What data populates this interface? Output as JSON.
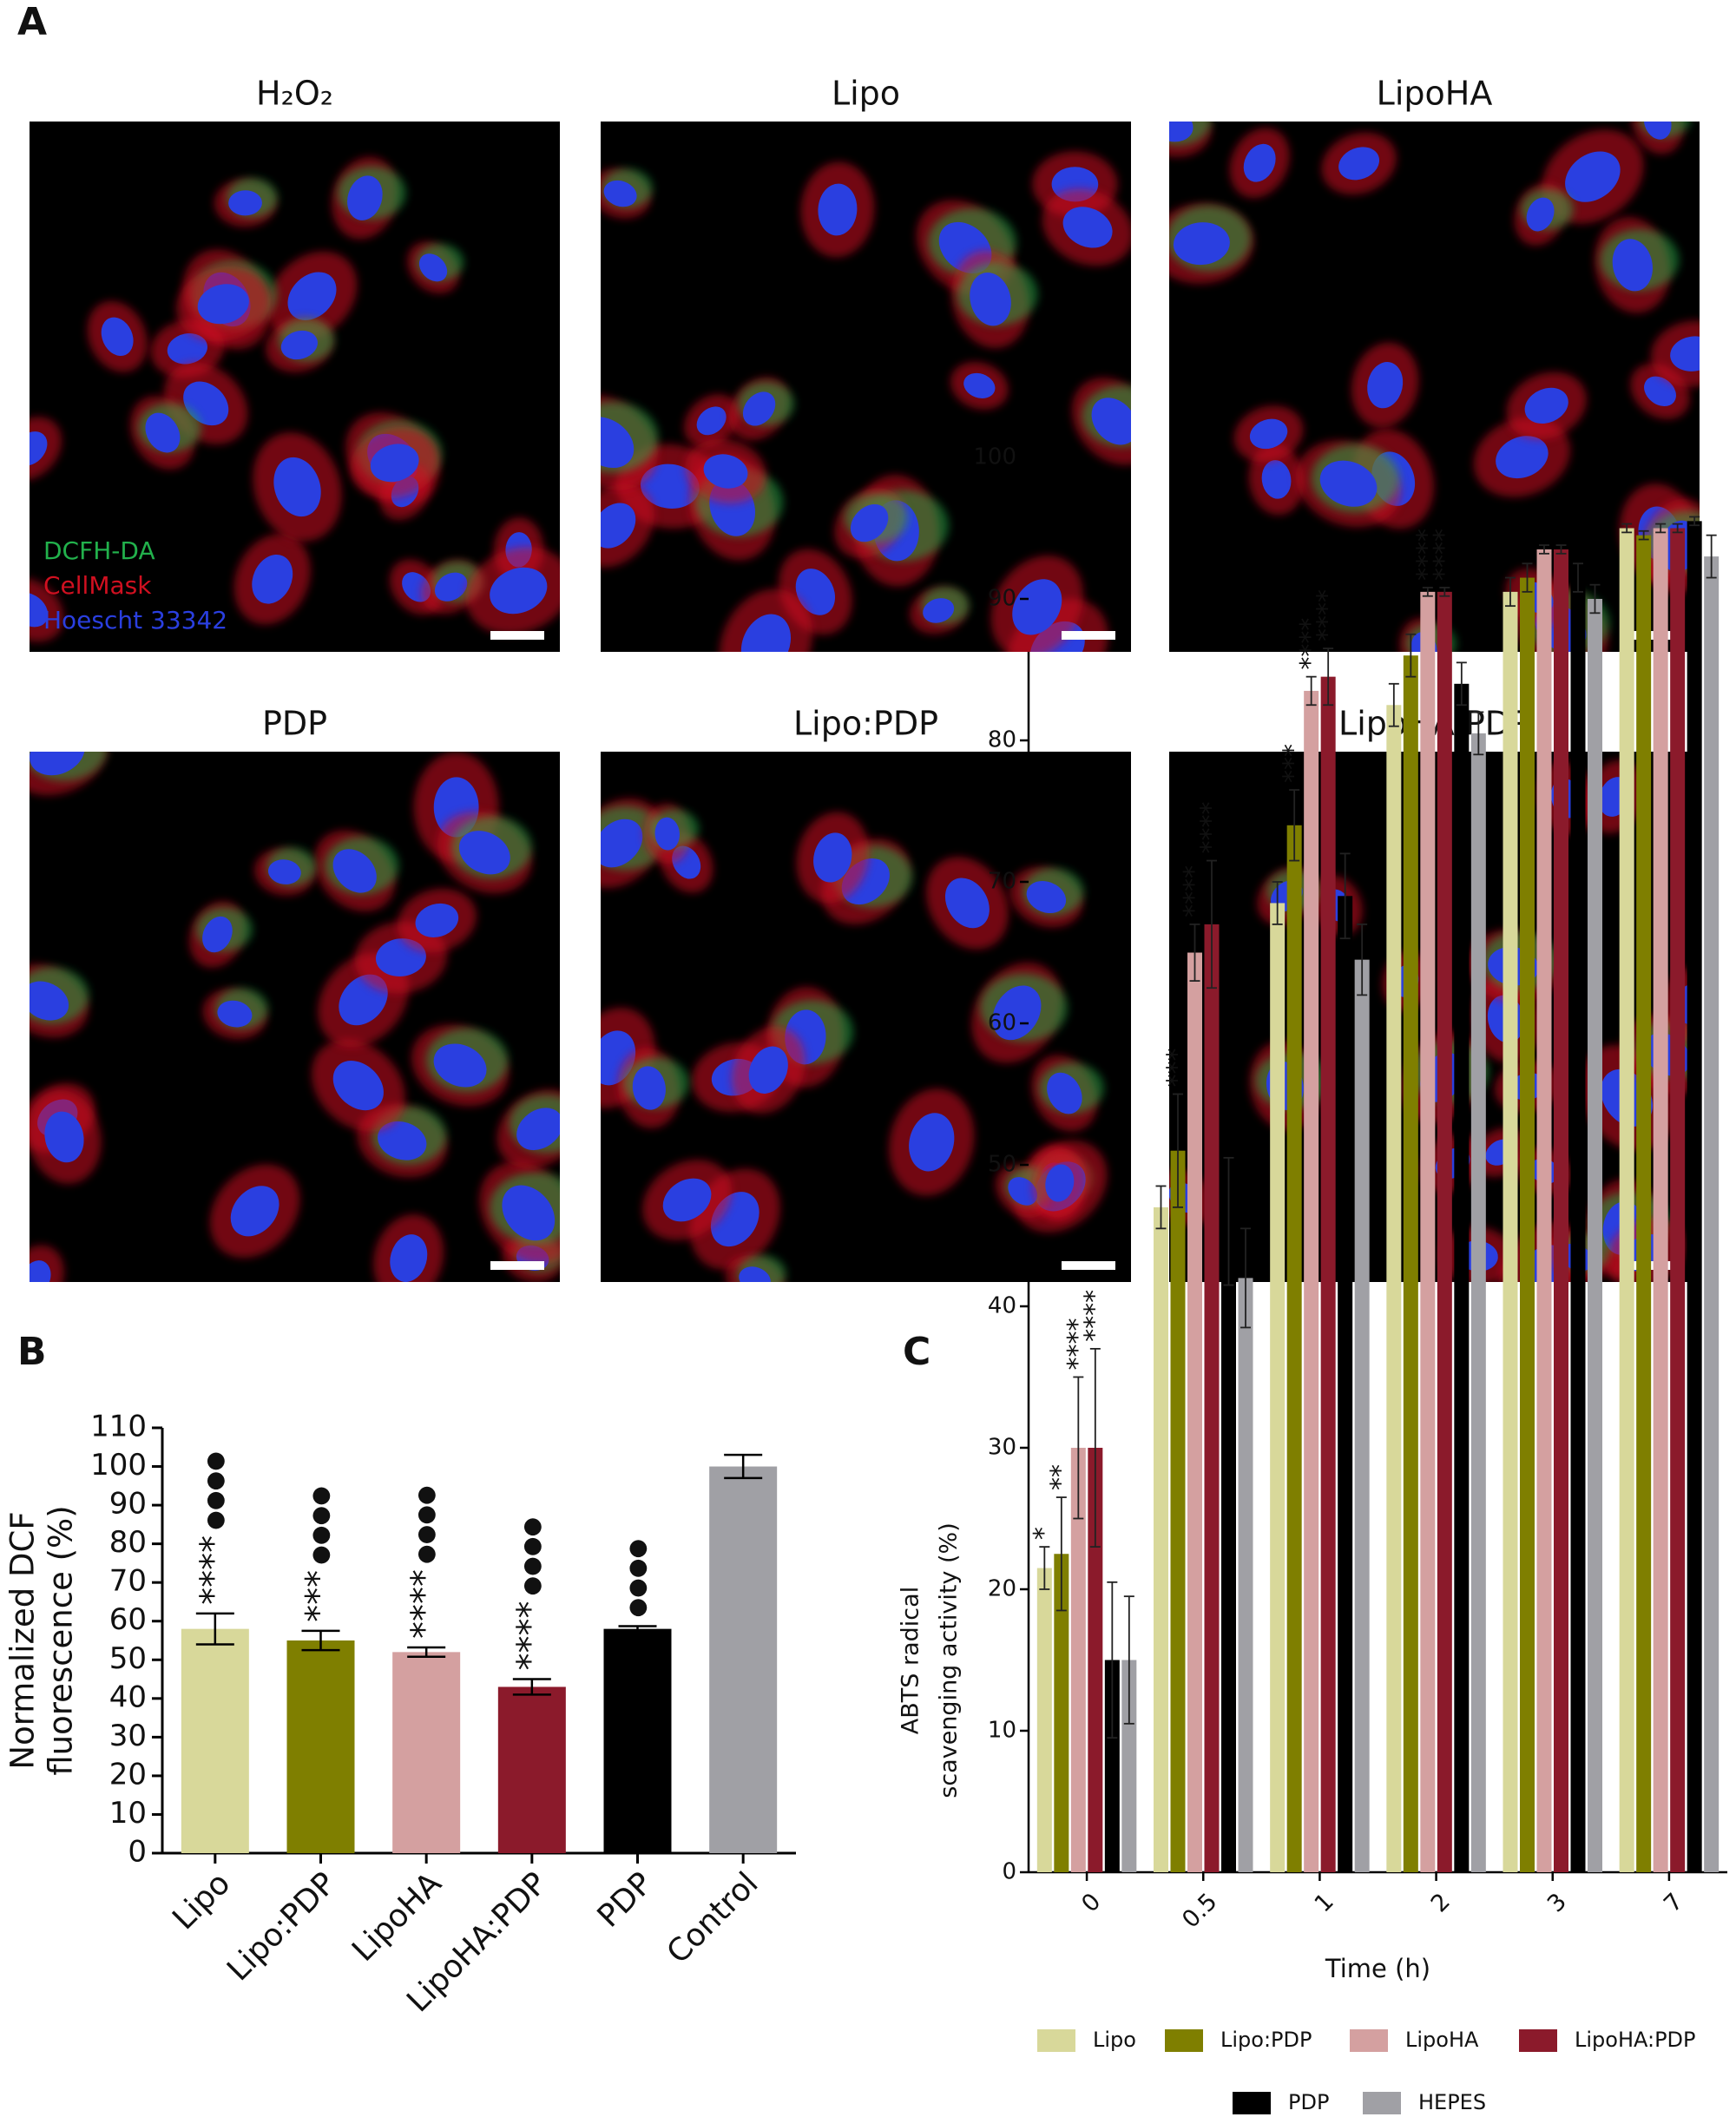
{
  "panel_labels": [
    "A",
    "B",
    "C"
  ],
  "images": {
    "titles": [
      "H₂O₂",
      "Lipo",
      "LipoHA",
      "PDP",
      "Lipo:PDP",
      "LipoHA:PDP"
    ],
    "channels": [
      {
        "name": "DCFH-DA",
        "color": "#22b14c"
      },
      {
        "name": "CellMask",
        "color": "#d01020"
      },
      {
        "name": "Hoescht 33342",
        "color": "#2a3fe0"
      }
    ]
  },
  "chart_data": [
    {
      "type": "bar",
      "y_label": [
        "Normalized DCF",
        "fluorescence (%)"
      ],
      "categories": [
        "Lipo",
        "Lipo:PDP",
        "LipoHA",
        "LipoHA:PDP",
        "PDP",
        "Control"
      ],
      "values": [
        58,
        55,
        52,
        43,
        58,
        100
      ],
      "errors": [
        4,
        2.5,
        1.2,
        2,
        0.7,
        3
      ],
      "colors": [
        "#d8d89a",
        "#7f7f00",
        "#d4a0a0",
        "#8b1a2b",
        "#000000",
        "#a0a0a5"
      ],
      "stars": [
        "****",
        "***",
        "****",
        "****",
        null,
        null
      ],
      "dots": [
        "●●●●",
        "●●●●",
        "●●●●",
        "●●●●",
        "●●●●",
        null
      ],
      "ylim": [
        0,
        110
      ],
      "yticks": [
        0,
        10,
        20,
        30,
        40,
        50,
        60,
        70,
        80,
        90,
        100,
        110
      ]
    },
    {
      "type": "grouped_bar",
      "y_label": [
        "ABTS radical",
        "scavenging activity (%)"
      ],
      "x_label": "Time (h)",
      "categories": [
        "0",
        "0.5",
        "1",
        "2",
        "3",
        "7"
      ],
      "ylim": [
        0,
        100
      ],
      "yticks": [
        0,
        10,
        20,
        30,
        40,
        50,
        60,
        70,
        80,
        90,
        100
      ],
      "legend": "bottom",
      "series": [
        {
          "name": "Lipo",
          "color": "#d8d89a",
          "values": [
            21.5,
            47,
            68.5,
            82.5,
            90.5,
            95
          ],
          "errors": [
            1.5,
            1.5,
            1.5,
            1.5,
            1,
            0.3
          ],
          "stars": [
            "*",
            null,
            null,
            null,
            null,
            null
          ]
        },
        {
          "name": "Lipo:PDP",
          "color": "#7f7f00",
          "values": [
            22.5,
            51,
            74,
            86,
            91.5,
            94.5
          ],
          "errors": [
            4,
            4,
            2.5,
            1.5,
            1,
            0.3
          ],
          "stars": [
            "**",
            "***",
            "***",
            null,
            null,
            null
          ]
        },
        {
          "name": "LipoHA",
          "color": "#d4a0a0",
          "values": [
            30,
            65,
            83.5,
            90.5,
            93.5,
            95
          ],
          "errors": [
            5,
            2,
            1,
            0.3,
            0.3,
            0.3
          ],
          "stars": [
            "****",
            "****",
            "****",
            "****",
            null,
            null
          ]
        },
        {
          "name": "LipoHA:PDP",
          "color": "#8b1a2b",
          "values": [
            30,
            67,
            84.5,
            90.5,
            93.5,
            95
          ],
          "errors": [
            7,
            4.5,
            2,
            0.3,
            0.3,
            0.3
          ],
          "stars": [
            "****",
            "****",
            "****",
            "****",
            null,
            null
          ]
        },
        {
          "name": "PDP",
          "color": "#000000",
          "values": [
            15,
            46,
            69,
            84,
            91.5,
            95.5
          ],
          "errors": [
            5.5,
            4.5,
            3,
            1.5,
            1,
            0.3
          ],
          "stars": [
            null,
            null,
            null,
            null,
            null,
            null
          ]
        },
        {
          "name": "HEPES",
          "color": "#a0a0a5",
          "values": [
            15,
            42,
            64.5,
            80.5,
            90,
            93
          ],
          "errors": [
            4.5,
            3.5,
            2.5,
            1.5,
            1,
            1.5
          ],
          "stars": [
            null,
            null,
            null,
            null,
            null,
            null
          ]
        }
      ]
    }
  ]
}
